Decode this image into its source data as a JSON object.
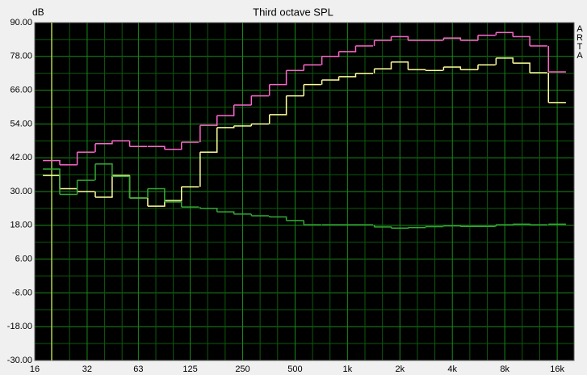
{
  "chart_data": {
    "type": "step",
    "title": "Third octave SPL",
    "y_label": "dB",
    "watermark": "ARTA",
    "x": [
      20,
      25,
      31.5,
      40,
      50,
      63,
      80,
      100,
      125,
      160,
      200,
      250,
      315,
      400,
      500,
      630,
      800,
      1000,
      1250,
      1600,
      2000,
      2500,
      3150,
      4000,
      5000,
      6300,
      8000,
      10000,
      12500,
      16000
    ],
    "series": [
      {
        "name": "pink",
        "color": "#ff66cc",
        "values": [
          41,
          39.5,
          44,
          47,
          48,
          46,
          46,
          45,
          47.5,
          53.5,
          57,
          60.7,
          64,
          68,
          73,
          75,
          78,
          79.7,
          81.7,
          83.7,
          85,
          83.7,
          83.7,
          84.5,
          83.7,
          85.5,
          86.5,
          85,
          81.7,
          72.5
        ]
      },
      {
        "name": "yellow",
        "color": "#ffff99",
        "values": [
          35.7,
          31,
          30,
          28,
          35.7,
          27.7,
          24.8,
          26.8,
          31.7,
          44,
          52.7,
          53.3,
          54,
          57.3,
          64,
          68,
          69.6,
          70.8,
          72,
          73.6,
          76,
          73.3,
          73,
          74.2,
          73.3,
          75,
          77.4,
          75.6,
          72.2,
          61.6
        ]
      },
      {
        "name": "green",
        "color": "#33aa33",
        "values": [
          38,
          29,
          34,
          39.8,
          35.4,
          27.7,
          31,
          26.3,
          24.5,
          24,
          22.8,
          22,
          21.4,
          21,
          19.7,
          18.2,
          18.2,
          18.2,
          18.2,
          17.4,
          17,
          17.2,
          17.5,
          17.8,
          17.6,
          17.6,
          18.2,
          18.4,
          18.2,
          18.4
        ]
      }
    ],
    "marker_x": 20,
    "marker_color": "#ffff66",
    "xscale": "log",
    "xlim": [
      16,
      20000
    ],
    "xticks": [
      16,
      32,
      63,
      125,
      250,
      500,
      {
        "value": 1000,
        "label": "1k"
      },
      {
        "value": 2000,
        "label": "2k"
      },
      {
        "value": 4000,
        "label": "4k"
      },
      {
        "value": 8000,
        "label": "8k"
      },
      {
        "value": 16000,
        "label": "16k"
      }
    ],
    "ylim": [
      -30,
      90
    ],
    "yticks": [
      {
        "value": 90,
        "label": "90.00"
      },
      {
        "value": 78,
        "label": "78.00"
      },
      {
        "value": 66,
        "label": "66.00"
      },
      {
        "value": 54,
        "label": "54.00"
      },
      {
        "value": 42,
        "label": "42.00"
      },
      {
        "value": 30,
        "label": "30.00"
      },
      {
        "value": 18,
        "label": "18.00"
      },
      {
        "value": 6,
        "label": "6.00"
      },
      {
        "value": -6,
        "label": "-6.00"
      },
      {
        "value": -18,
        "label": "-18.00"
      },
      {
        "value": -30,
        "label": "-30.00"
      }
    ],
    "grid": true
  }
}
